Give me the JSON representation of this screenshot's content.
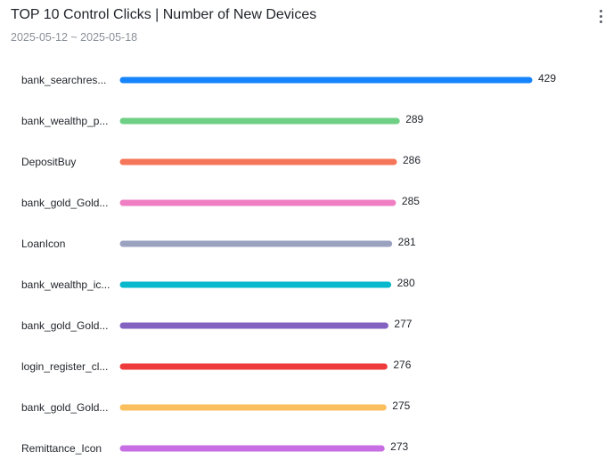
{
  "header": {
    "title": "TOP 10 Control Clicks | Number of New Devices",
    "date_range": "2025-05-12 ~ 2025-05-18",
    "more_icon": "more-vertical-icon"
  },
  "chart_data": {
    "type": "bar",
    "orientation": "horizontal",
    "title": "TOP 10 Control Clicks | Number of New Devices",
    "subtitle": "2025-05-12 ~ 2025-05-18",
    "categories": [
      "bank_searchres...",
      "bank_wealthp_p...",
      "DepositBuy",
      "bank_gold_Gold...",
      "LoanIcon",
      "bank_wealthp_ic...",
      "bank_gold_Gold...",
      "login_register_cl...",
      "bank_gold_Gold...",
      "Remittance_Icon"
    ],
    "values": [
      429,
      289,
      286,
      285,
      281,
      280,
      277,
      276,
      275,
      273
    ],
    "colors": [
      "#1684fc",
      "#6fd085",
      "#f57659",
      "#ef7ec3",
      "#9aa2c0",
      "#08b8cc",
      "#8362c2",
      "#ee3a3a",
      "#fbbf5e",
      "#c86ee4"
    ],
    "xlim": [
      0,
      429
    ],
    "grid": false,
    "legend": "none"
  }
}
